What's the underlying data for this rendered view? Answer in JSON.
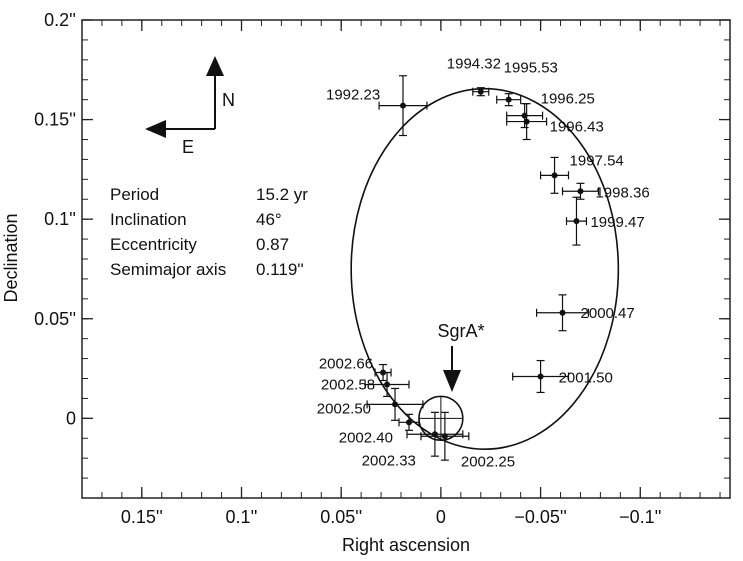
{
  "chart_data": {
    "type": "scatter",
    "xlabel": "Right ascension",
    "ylabel": "Declination",
    "xlim": [
      0.18,
      -0.145
    ],
    "ylim": [
      -0.04,
      0.2
    ],
    "x_ticks": [
      0.15,
      0.1,
      0.05,
      0,
      -0.05,
      -0.1
    ],
    "x_tick_labels": [
      "0.15''",
      "0.1''",
      "0.05''",
      "0",
      "−0.05''",
      "−0.1''"
    ],
    "y_ticks": [
      0,
      0.05,
      0.1,
      0.15,
      0.2
    ],
    "y_tick_labels": [
      "0",
      "0.05''",
      "0.1''",
      "0.15''",
      "0.2''"
    ],
    "grid": false,
    "points": [
      {
        "label": "1992.23",
        "x": 0.019,
        "y": 0.157,
        "xerr": 0.012,
        "yerr": 0.015
      },
      {
        "label": "1994.32",
        "x": -0.02,
        "y": 0.164,
        "xerr": 0.004,
        "yerr": 0.002
      },
      {
        "label": "1995.53",
        "x": -0.034,
        "y": 0.16,
        "xerr": 0.006,
        "yerr": 0.003
      },
      {
        "label": "1996.25",
        "x": -0.042,
        "y": 0.152,
        "xerr": 0.009,
        "yerr": 0.006
      },
      {
        "label": "1996.43",
        "x": -0.043,
        "y": 0.149,
        "xerr": 0.01,
        "yerr": 0.009
      },
      {
        "label": "1997.54",
        "x": -0.057,
        "y": 0.122,
        "xerr": 0.007,
        "yerr": 0.009
      },
      {
        "label": "1998.36",
        "x": -0.07,
        "y": 0.114,
        "xerr": 0.009,
        "yerr": 0.004
      },
      {
        "label": "1999.47",
        "x": -0.068,
        "y": 0.099,
        "xerr": 0.005,
        "yerr": 0.012
      },
      {
        "label": "2000.47",
        "x": -0.061,
        "y": 0.053,
        "xerr": 0.013,
        "yerr": 0.009
      },
      {
        "label": "2001.50",
        "x": -0.05,
        "y": 0.021,
        "xerr": 0.014,
        "yerr": 0.008
      },
      {
        "label": "2002.66",
        "x": 0.029,
        "y": 0.023,
        "xerr": 0.004,
        "yerr": 0.004
      },
      {
        "label": "2002.58",
        "x": 0.027,
        "y": 0.017,
        "xerr": 0.011,
        "yerr": 0.006
      },
      {
        "label": "2002.50",
        "x": 0.023,
        "y": 0.007,
        "xerr": 0.014,
        "yerr": 0.008
      },
      {
        "label": "2002.40",
        "x": 0.016,
        "y": -0.002,
        "xerr": 0.005,
        "yerr": 0.004
      },
      {
        "label": "2002.33",
        "x": 0.003,
        "y": -0.008,
        "xerr": 0.014,
        "yerr": 0.011
      },
      {
        "label": "2002.25",
        "x": -0.002,
        "y": -0.009,
        "xerr": 0.012,
        "yerr": 0.012
      }
    ],
    "orbit_ellipse": {
      "center_x": -0.022,
      "center_y": 0.075,
      "semi_x": 0.067,
      "semi_y": 0.0905
    },
    "sgra": {
      "label": "SgrA*",
      "x": 0,
      "y": 0,
      "radius": 0.011
    },
    "orbit_parameters": [
      {
        "name": "Period",
        "value": "15.2 yr"
      },
      {
        "name": "Inclination",
        "value": "46°"
      },
      {
        "name": "Eccentricity",
        "value": "0.87"
      },
      {
        "name": "Semimajor axis",
        "value": "0.119''"
      }
    ],
    "compass": {
      "north": "N",
      "east": "E"
    }
  }
}
